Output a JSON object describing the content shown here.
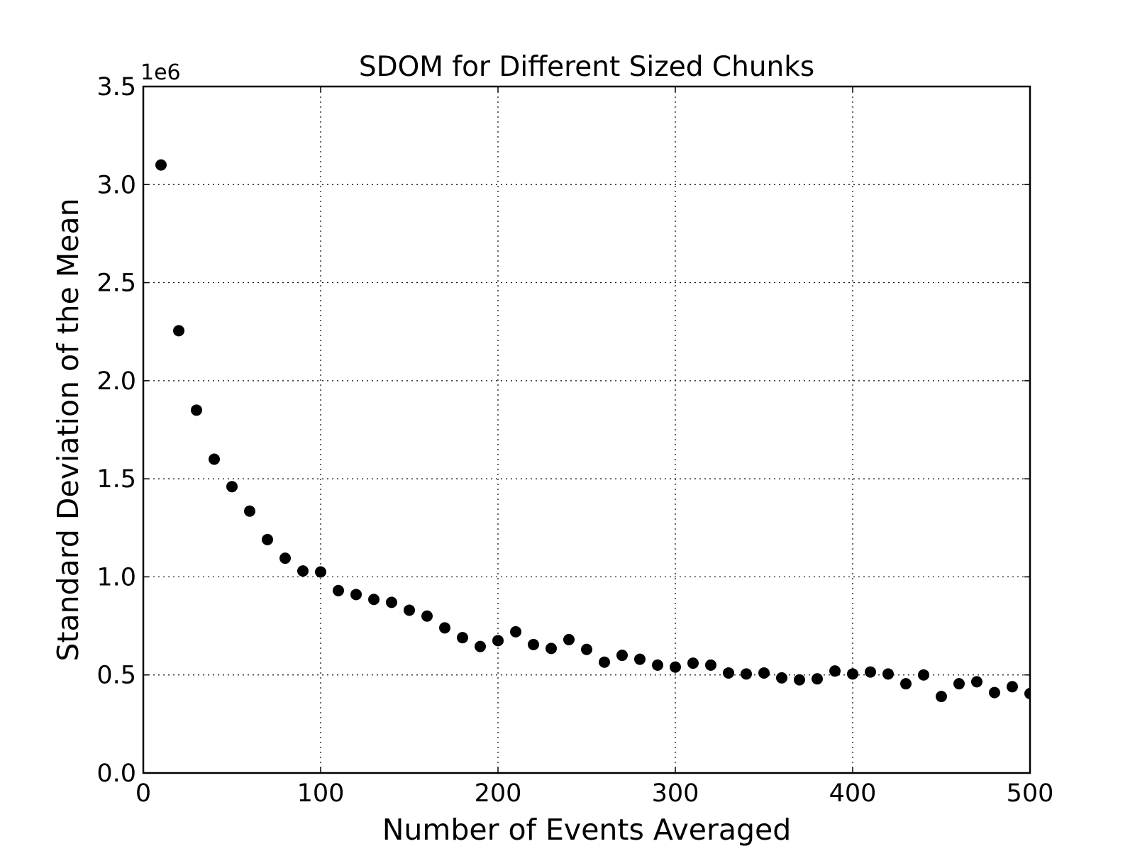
{
  "chart_data": {
    "type": "scatter",
    "title": "SDOM for Different Sized Chunks",
    "xlabel": "Number of Events Averaged",
    "ylabel": "Standard Deviation of the Mean",
    "y_offset_label": "1e6",
    "xlim": [
      0,
      500
    ],
    "ylim": [
      0,
      3.5
    ],
    "xticks": [
      0,
      100,
      200,
      300,
      400,
      500
    ],
    "yticks": [
      0.0,
      0.5,
      1.0,
      1.5,
      2.0,
      2.5,
      3.0,
      3.5
    ],
    "xtick_labels": [
      "0",
      "100",
      "200",
      "300",
      "400",
      "500"
    ],
    "ytick_labels": [
      "0.0",
      "0.5",
      "1.0",
      "1.5",
      "2.0",
      "2.5",
      "3.0",
      "3.5"
    ],
    "grid": true,
    "marker_color": "#000000",
    "series": [
      {
        "x": [
          10,
          20,
          30,
          40,
          50,
          60,
          70,
          80,
          90,
          100,
          110,
          120,
          130,
          140,
          150,
          160,
          170,
          180,
          190,
          200,
          210,
          220,
          230,
          240,
          250,
          260,
          270,
          280,
          290,
          300,
          310,
          320,
          330,
          340,
          350,
          360,
          370,
          380,
          390,
          400,
          410,
          420,
          430,
          440,
          450,
          460,
          470,
          480,
          490,
          500
        ],
        "y": [
          3.1,
          2.255,
          1.85,
          1.6,
          1.46,
          1.335,
          1.19,
          1.095,
          1.03,
          1.025,
          0.93,
          0.91,
          0.885,
          0.87,
          0.83,
          0.8,
          0.74,
          0.69,
          0.645,
          0.675,
          0.72,
          0.655,
          0.635,
          0.68,
          0.63,
          0.565,
          0.6,
          0.58,
          0.55,
          0.54,
          0.56,
          0.55,
          0.51,
          0.505,
          0.51,
          0.485,
          0.475,
          0.48,
          0.52,
          0.505,
          0.515,
          0.505,
          0.455,
          0.5,
          0.39,
          0.455,
          0.465,
          0.41,
          0.44,
          0.405
        ]
      }
    ]
  }
}
